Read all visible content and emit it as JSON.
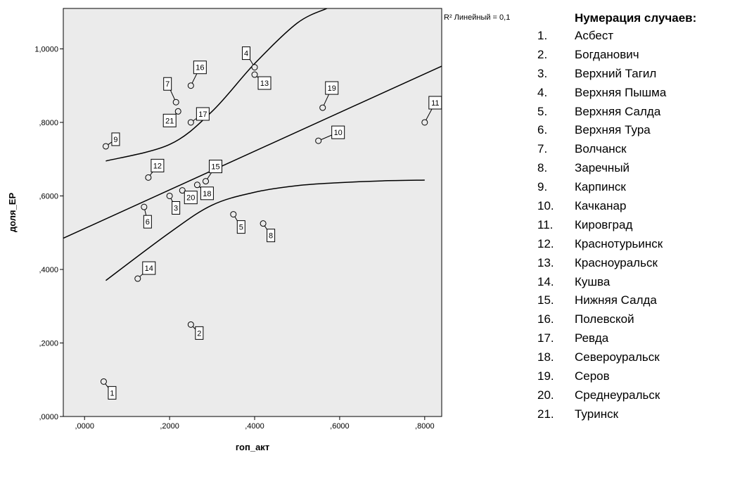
{
  "chart_data": {
    "type": "scatter",
    "xlabel": "гоп_акт",
    "ylabel": "доля_ЕР",
    "xlim": [
      -0.05,
      0.84
    ],
    "ylim": [
      0.0,
      1.11
    ],
    "x_ticks": [
      ",0000",
      ",2000",
      ",4000",
      ",6000",
      ",8000"
    ],
    "y_ticks": [
      ",0000",
      ",2000",
      ",4000",
      ",6000",
      ",8000",
      "1,0000"
    ],
    "x_tick_values": [
      0.0,
      0.2,
      0.4,
      0.6,
      0.8
    ],
    "y_tick_values": [
      0.0,
      0.2,
      0.4,
      0.6,
      0.8,
      1.0
    ],
    "r2_label": "R² Линейный = 0,1",
    "points": [
      {
        "label": "1",
        "x": 0.045,
        "y": 0.095
      },
      {
        "label": "2",
        "x": 0.25,
        "y": 0.25
      },
      {
        "label": "3",
        "x": 0.2,
        "y": 0.6
      },
      {
        "label": "4",
        "x": 0.4,
        "y": 0.95
      },
      {
        "label": "5",
        "x": 0.35,
        "y": 0.55
      },
      {
        "label": "6",
        "x": 0.14,
        "y": 0.57
      },
      {
        "label": "7",
        "x": 0.215,
        "y": 0.855
      },
      {
        "label": "8",
        "x": 0.42,
        "y": 0.525
      },
      {
        "label": "9",
        "x": 0.05,
        "y": 0.735
      },
      {
        "label": "10",
        "x": 0.55,
        "y": 0.75
      },
      {
        "label": "11",
        "x": 0.8,
        "y": 0.8
      },
      {
        "label": "12",
        "x": 0.15,
        "y": 0.65
      },
      {
        "label": "13",
        "x": 0.4,
        "y": 0.93
      },
      {
        "label": "14",
        "x": 0.125,
        "y": 0.375
      },
      {
        "label": "15",
        "x": 0.285,
        "y": 0.64
      },
      {
        "label": "16",
        "x": 0.25,
        "y": 0.9
      },
      {
        "label": "17",
        "x": 0.25,
        "y": 0.8
      },
      {
        "label": "18",
        "x": 0.265,
        "y": 0.63
      },
      {
        "label": "19",
        "x": 0.56,
        "y": 0.84
      },
      {
        "label": "20",
        "x": 0.23,
        "y": 0.615
      },
      {
        "label": "21",
        "x": 0.22,
        "y": 0.83
      }
    ],
    "fit_line": {
      "x": [
        -0.05,
        0.84
      ],
      "y": [
        0.485,
        0.953
      ]
    },
    "ci_upper": {
      "x": [
        0.05,
        0.2,
        0.3,
        0.4,
        0.5,
        0.57
      ],
      "y": [
        0.695,
        0.74,
        0.83,
        0.96,
        1.07,
        1.11
      ]
    },
    "ci_lower": {
      "x": [
        0.05,
        0.2,
        0.3,
        0.4,
        0.5,
        0.6,
        0.7,
        0.8
      ],
      "y": [
        0.37,
        0.5,
        0.575,
        0.61,
        0.628,
        0.636,
        0.641,
        0.643
      ]
    }
  },
  "legend": {
    "title": "Нумерация случаев:",
    "items": [
      {
        "num": "1.",
        "name": "Асбест"
      },
      {
        "num": "2.",
        "name": "Богданович"
      },
      {
        "num": "3.",
        "name": "Верхний Тагил"
      },
      {
        "num": "4.",
        "name": "Верхняя Пышма"
      },
      {
        "num": "5.",
        "name": "Верхняя Салда"
      },
      {
        "num": "6.",
        "name": "Верхняя Тура"
      },
      {
        "num": "7.",
        "name": "Волчанск"
      },
      {
        "num": "8.",
        "name": "Заречный"
      },
      {
        "num": "9.",
        "name": "Карпинск"
      },
      {
        "num": "10.",
        "name": "Качканар"
      },
      {
        "num": "11.",
        "name": "Кировград"
      },
      {
        "num": "12.",
        "name": "Краснотурьинск"
      },
      {
        "num": "13.",
        "name": "Красноуральск"
      },
      {
        "num": "14.",
        "name": "Кушва"
      },
      {
        "num": "15.",
        "name": "Нижняя Салда"
      },
      {
        "num": "16.",
        "name": "Полевской"
      },
      {
        "num": "17.",
        "name": "Ревда"
      },
      {
        "num": "18.",
        "name": "Североуральск"
      },
      {
        "num": "19.",
        "name": "Серов"
      },
      {
        "num": "20.",
        "name": "Среднеуральск"
      },
      {
        "num": "21.",
        "name": "Туринск"
      }
    ]
  },
  "colors": {
    "plot_background": "#ebebeb",
    "axis": "#000000",
    "marker_fill": "#ebebeb"
  }
}
